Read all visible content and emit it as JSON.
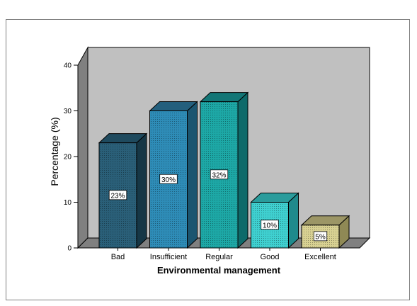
{
  "chart_data": {
    "type": "bar",
    "categories": [
      "Bad",
      "Insufficient",
      "Regular",
      "Good",
      "Excellent"
    ],
    "values": [
      23,
      30,
      32,
      10,
      5
    ],
    "data_labels": [
      "23%",
      "30%",
      "32%",
      "10%",
      "5%"
    ],
    "xlabel": "Environmental management",
    "ylabel": "Percentage (%)",
    "ylim": [
      0,
      40
    ],
    "yticks": [
      "0",
      "10",
      "20",
      "30",
      "40"
    ],
    "grid": false,
    "style": "3d",
    "colors": {
      "front": [
        "#2a5f78",
        "#2e8cb7",
        "#1da8a6",
        "#3fd0d0",
        "#d8d192"
      ],
      "side": [
        "#163746",
        "#1b5570",
        "#0e6a6a",
        "#1f8a8c",
        "#8f8955"
      ],
      "top": [
        "#1f4a5e",
        "#245f7d",
        "#137676",
        "#2a9c9c",
        "#9c9666"
      ],
      "wall": "#c0c0c0",
      "floor": "#808080"
    }
  }
}
